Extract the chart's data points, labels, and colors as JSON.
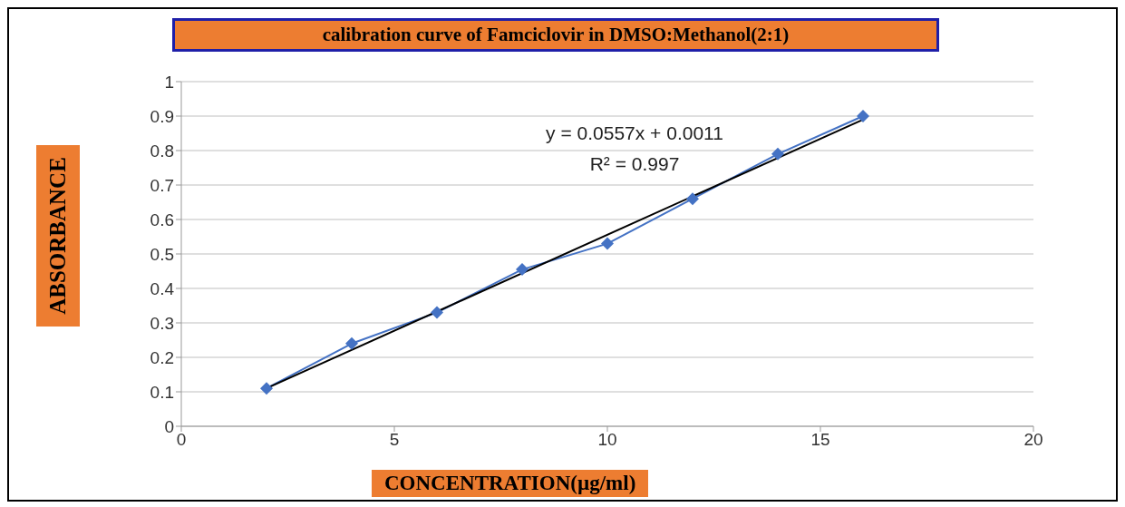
{
  "chart_data": {
    "type": "line",
    "title": "calibration curve of Famciclovir in DMSO:Methanol(2:1)",
    "xlabel": "CONCENTRATION(µg/ml)",
    "ylabel": "ABSORBANCE",
    "x": [
      2,
      4,
      6,
      8,
      10,
      12,
      14,
      16
    ],
    "series": [
      {
        "color": "#4472c4",
        "marker": "diamond",
        "values": [
          0.11,
          0.24,
          0.33,
          0.455,
          0.53,
          0.66,
          0.79,
          0.9
        ]
      },
      {
        "type": "line",
        "color": "#000000",
        "marker": "none",
        "x": [
          2,
          16
        ],
        "values": [
          0.11,
          0.89
        ]
      }
    ],
    "annotations": [
      "y = 0.0557x + 0.0011",
      "R² = 0.997"
    ],
    "xlim": [
      0,
      20
    ],
    "xticks": [
      0,
      5,
      10,
      15,
      20
    ],
    "ylim": [
      0,
      1
    ],
    "yticks": [
      0,
      0.1,
      0.2,
      0.3,
      0.4,
      0.5,
      0.6,
      0.7,
      0.8,
      0.9,
      1
    ],
    "grid": "y"
  }
}
